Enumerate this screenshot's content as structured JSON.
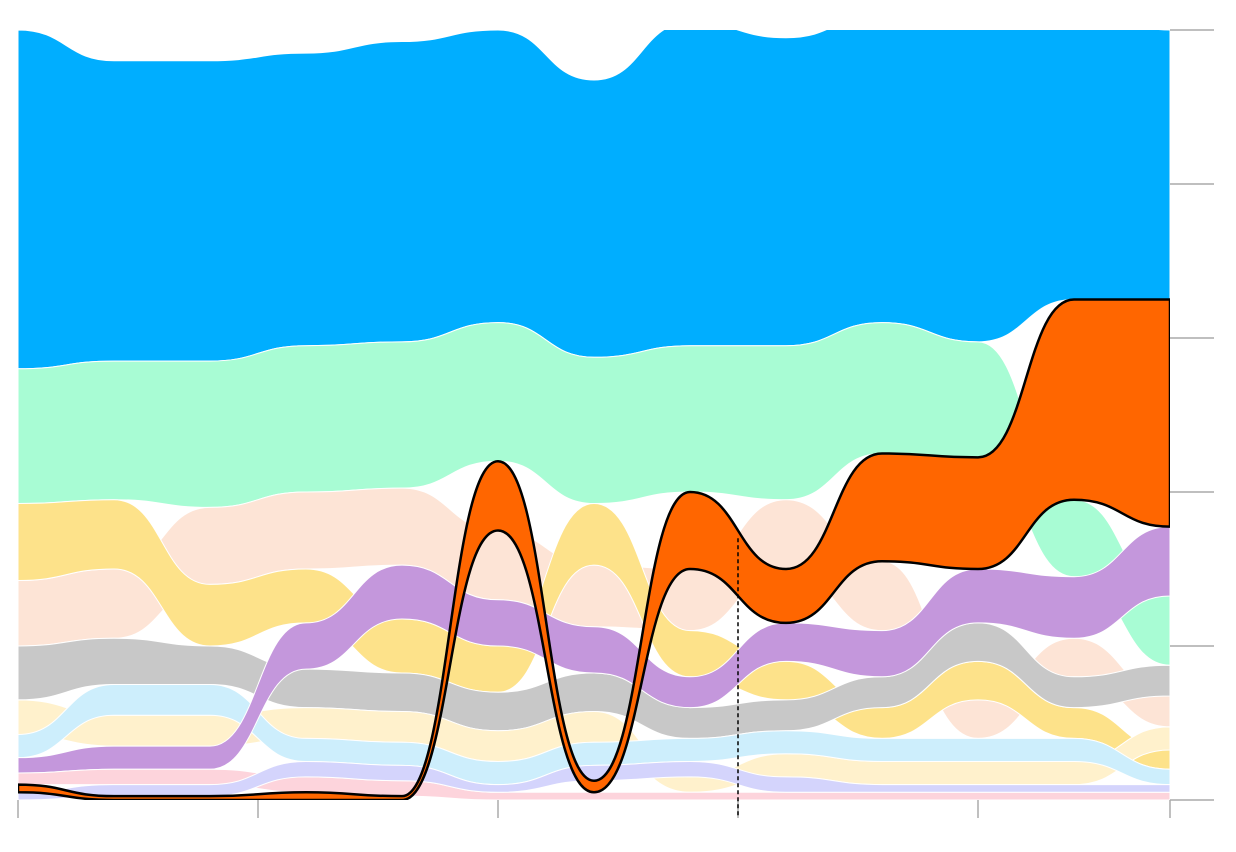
{
  "chart_data": {
    "type": "ranked-stream",
    "x": [
      0,
      4,
      8,
      12,
      16,
      20,
      24,
      28,
      32,
      36,
      40,
      44,
      48
    ],
    "xlim": [
      0,
      48
    ],
    "xticks": [
      0,
      10,
      20,
      30,
      40,
      48
    ],
    "ylim": [
      0,
      100
    ],
    "yticks": [
      0,
      20,
      40,
      60,
      80,
      100
    ],
    "vline": 30,
    "highlight": "#ff6600",
    "series": [
      {
        "color": "#00aeff",
        "values": [
          44,
          39,
          39,
          38,
          39,
          38,
          36,
          42,
          40,
          40,
          41,
          38,
          35
        ]
      },
      {
        "color": "#a8fcd4",
        "values": [
          17.5,
          18,
          19,
          19,
          19,
          18,
          19,
          19,
          20,
          17,
          15,
          10,
          9
        ]
      },
      {
        "color": "#fde4d6",
        "values": [
          8.5,
          9,
          10,
          10,
          10,
          9,
          8,
          8,
          9,
          9,
          5,
          5,
          4
        ]
      },
      {
        "color": "#fde28a",
        "values": [
          10,
          9,
          8,
          7,
          7,
          6,
          8,
          6,
          5,
          4,
          5,
          4,
          2.5
        ]
      },
      {
        "color": "#c8c8c8",
        "values": [
          7,
          6,
          5,
          5,
          5,
          5,
          5,
          4,
          4,
          4,
          5,
          4,
          4
        ]
      },
      {
        "color": "#fff1cc",
        "values": [
          4.5,
          4,
          4,
          4,
          4,
          4,
          4,
          2,
          3,
          3,
          3,
          3,
          3
        ]
      },
      {
        "color": "#cdeefc",
        "values": [
          3,
          4,
          4,
          3,
          3,
          3,
          3,
          3,
          3,
          3,
          3,
          3,
          2
        ]
      },
      {
        "color": "#c497dc",
        "values": [
          2,
          3,
          3,
          6,
          7,
          6,
          6,
          4,
          5,
          6,
          7,
          8,
          9
        ]
      },
      {
        "color": "#fdd4dc",
        "values": [
          1.5,
          2,
          2,
          2,
          2,
          1,
          1,
          1,
          1,
          1,
          1,
          1,
          1
        ]
      },
      {
        "color": "#d4d4fc",
        "values": [
          1,
          1.5,
          1.5,
          2,
          2,
          1,
          2,
          2,
          2,
          1,
          1,
          1,
          1
        ]
      },
      {
        "color": "#ff6600",
        "values": [
          1,
          0.5,
          0.5,
          1,
          0.5,
          9,
          1.5,
          10,
          7,
          14,
          14.5,
          26,
          29.5
        ]
      }
    ]
  }
}
